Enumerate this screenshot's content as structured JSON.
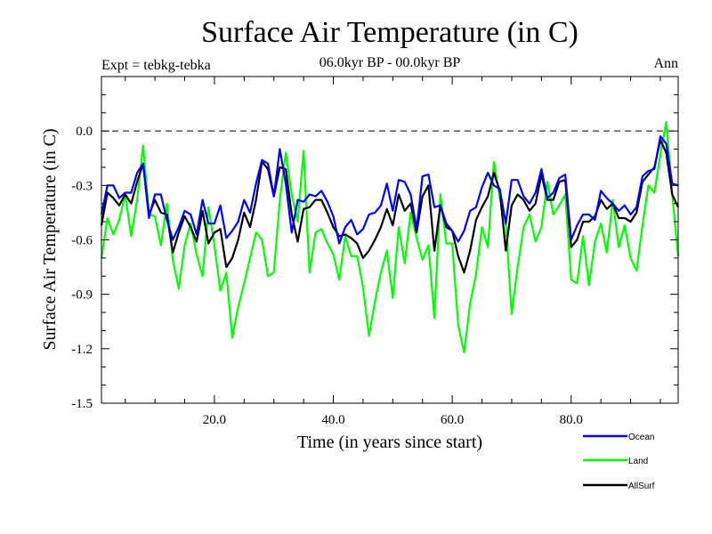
{
  "chart_data": {
    "type": "line",
    "title": "Surface Air Temperature (in C)",
    "subtitle": "06.0kyr BP - 00.0kyr BP",
    "experiment_label": "Expt = tebkg-tebka",
    "season_label": "Ann",
    "xlabel": "Time (in years since start)",
    "ylabel": "Surface Air Temperature (in C)",
    "xlim": [
      1,
      98
    ],
    "ylim": [
      -1.5,
      0.3
    ],
    "xticks": [
      20,
      40,
      60,
      80
    ],
    "xtick_labels": [
      "20.0",
      "40.0",
      "60.0",
      "80.0"
    ],
    "yticks": [
      0.0,
      -0.3,
      -0.6,
      -0.9,
      -1.2,
      -1.5
    ],
    "ytick_labels": [
      "0.0",
      "-0.3",
      "-0.6",
      "-0.9",
      "-1.2",
      "-1.5"
    ],
    "reference_line": 0.0,
    "x": [
      1,
      2,
      3,
      4,
      5,
      6,
      7,
      8,
      9,
      10,
      11,
      12,
      13,
      14,
      15,
      16,
      17,
      18,
      19,
      20,
      21,
      22,
      23,
      24,
      25,
      26,
      27,
      28,
      29,
      30,
      31,
      32,
      33,
      34,
      35,
      36,
      37,
      38,
      39,
      40,
      41,
      42,
      43,
      44,
      45,
      46,
      47,
      48,
      49,
      50,
      51,
      52,
      53,
      54,
      55,
      56,
      57,
      58,
      59,
      60,
      61,
      62,
      63,
      64,
      65,
      66,
      67,
      68,
      69,
      70,
      71,
      72,
      73,
      74,
      75,
      76,
      77,
      78,
      79,
      80,
      81,
      82,
      83,
      84,
      85,
      86,
      87,
      88,
      89,
      90,
      91,
      92,
      93,
      94,
      95,
      96,
      97,
      98
    ],
    "series": [
      {
        "name": "Ocean",
        "color": "#0000ff",
        "values": [
          -0.46,
          -0.3,
          -0.3,
          -0.37,
          -0.34,
          -0.34,
          -0.23,
          -0.18,
          -0.48,
          -0.35,
          -0.35,
          -0.49,
          -0.6,
          -0.53,
          -0.44,
          -0.46,
          -0.57,
          -0.38,
          -0.51,
          -0.51,
          -0.41,
          -0.59,
          -0.55,
          -0.5,
          -0.38,
          -0.45,
          -0.29,
          -0.16,
          -0.18,
          -0.36,
          -0.1,
          -0.29,
          -0.56,
          -0.38,
          -0.39,
          -0.35,
          -0.36,
          -0.33,
          -0.39,
          -0.47,
          -0.62,
          -0.53,
          -0.49,
          -0.57,
          -0.54,
          -0.46,
          -0.45,
          -0.41,
          -0.29,
          -0.44,
          -0.27,
          -0.28,
          -0.35,
          -0.54,
          -0.25,
          -0.24,
          -0.42,
          -0.41,
          -0.51,
          -0.55,
          -0.61,
          -0.55,
          -0.44,
          -0.42,
          -0.31,
          -0.23,
          -0.3,
          -0.32,
          -0.51,
          -0.27,
          -0.27,
          -0.36,
          -0.4,
          -0.34,
          -0.21,
          -0.37,
          -0.34,
          -0.26,
          -0.24,
          -0.6,
          -0.52,
          -0.46,
          -0.46,
          -0.49,
          -0.33,
          -0.37,
          -0.4,
          -0.44,
          -0.41,
          -0.46,
          -0.42,
          -0.25,
          -0.22,
          -0.21,
          -0.03,
          -0.07,
          -0.29,
          -0.3
        ]
      },
      {
        "name": "Land",
        "color": "#00ff00",
        "values": [
          -0.7,
          -0.48,
          -0.57,
          -0.49,
          -0.35,
          -0.58,
          -0.38,
          -0.08,
          -0.46,
          -0.47,
          -0.63,
          -0.4,
          -0.71,
          -0.87,
          -0.63,
          -0.51,
          -0.68,
          -0.8,
          -0.42,
          -0.63,
          -0.88,
          -0.78,
          -1.14,
          -0.97,
          -0.84,
          -0.7,
          -0.56,
          -0.6,
          -0.8,
          -0.78,
          -0.38,
          -0.12,
          -0.35,
          -0.5,
          -0.11,
          -0.78,
          -0.56,
          -0.54,
          -0.62,
          -0.68,
          -0.82,
          -0.58,
          -0.69,
          -0.69,
          -0.86,
          -1.13,
          -0.94,
          -0.78,
          -0.66,
          -0.92,
          -0.53,
          -0.73,
          -0.45,
          -0.59,
          -0.71,
          -0.63,
          -1.03,
          -0.35,
          -0.62,
          -0.62,
          -1.07,
          -1.22,
          -0.95,
          -0.79,
          -0.53,
          -0.64,
          -0.17,
          -0.37,
          -0.5,
          -1.01,
          -0.75,
          -0.53,
          -0.46,
          -0.61,
          -0.53,
          -0.28,
          -0.46,
          -0.41,
          -0.35,
          -0.82,
          -0.84,
          -0.58,
          -0.85,
          -0.61,
          -0.51,
          -0.67,
          -0.38,
          -0.64,
          -0.52,
          -0.7,
          -0.77,
          -0.52,
          -0.3,
          -0.34,
          -0.13,
          0.05,
          -0.35,
          -0.69
        ]
      },
      {
        "name": "AllSurf",
        "color": "#000000",
        "values": [
          -0.52,
          -0.34,
          -0.37,
          -0.41,
          -0.35,
          -0.4,
          -0.28,
          -0.18,
          -0.46,
          -0.38,
          -0.45,
          -0.46,
          -0.67,
          -0.56,
          -0.47,
          -0.53,
          -0.61,
          -0.44,
          -0.62,
          -0.56,
          -0.54,
          -0.75,
          -0.7,
          -0.6,
          -0.45,
          -0.53,
          -0.38,
          -0.17,
          -0.21,
          -0.36,
          -0.2,
          -0.21,
          -0.46,
          -0.61,
          -0.43,
          -0.42,
          -0.38,
          -0.38,
          -0.45,
          -0.53,
          -0.58,
          -0.57,
          -0.59,
          -0.62,
          -0.7,
          -0.66,
          -0.6,
          -0.53,
          -0.43,
          -0.52,
          -0.35,
          -0.44,
          -0.4,
          -0.56,
          -0.36,
          -0.3,
          -0.66,
          -0.41,
          -0.53,
          -0.55,
          -0.69,
          -0.78,
          -0.66,
          -0.49,
          -0.42,
          -0.36,
          -0.23,
          -0.33,
          -0.66,
          -0.41,
          -0.35,
          -0.38,
          -0.44,
          -0.4,
          -0.24,
          -0.38,
          -0.38,
          -0.28,
          -0.27,
          -0.64,
          -0.6,
          -0.5,
          -0.5,
          -0.47,
          -0.38,
          -0.43,
          -0.4,
          -0.48,
          -0.48,
          -0.5,
          -0.45,
          -0.28,
          -0.24,
          -0.2,
          -0.05,
          -0.12,
          -0.35,
          -0.42
        ]
      }
    ],
    "legend": [
      {
        "label": "Ocean",
        "color": "#0000ff"
      },
      {
        "label": "Land",
        "color": "#00ff00"
      },
      {
        "label": "AllSurf",
        "color": "#000000"
      }
    ],
    "legend_position": "bottom-right"
  }
}
